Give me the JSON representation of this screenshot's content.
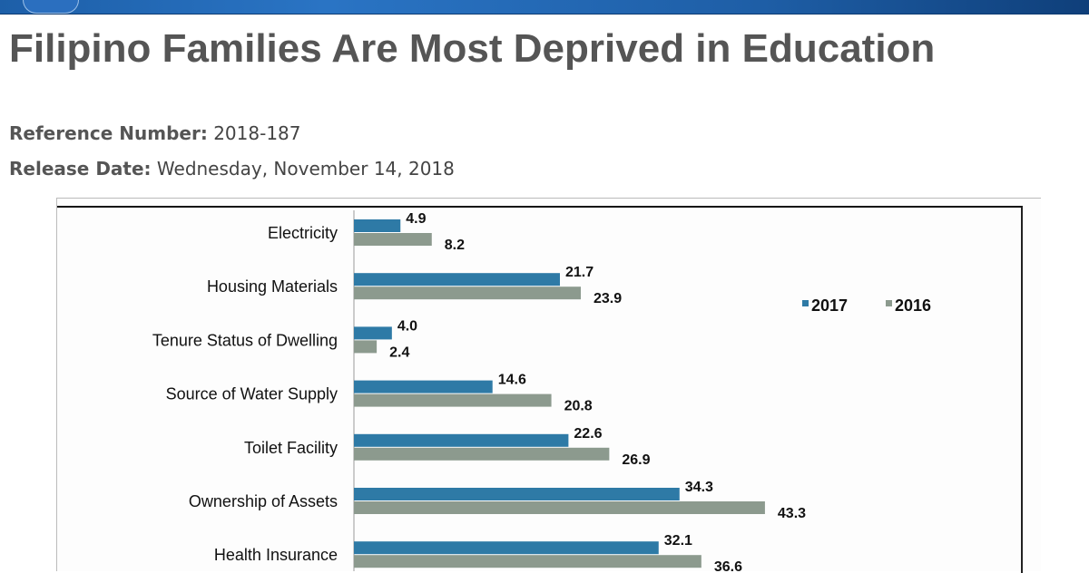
{
  "header": {
    "title": "Filipino Families Are Most Deprived in Education"
  },
  "meta": {
    "ref_label": "Reference Number:",
    "ref_value": "2018-187",
    "date_label": "Release Date:",
    "date_value": "Wednesday, November 14, 2018"
  },
  "chart_data": {
    "type": "bar",
    "orientation": "horizontal",
    "categories": [
      "Electricity",
      "Housing Materials",
      "Tenure Status of Dwelling",
      "Source of Water Supply",
      "Toilet Facility",
      "Ownership of Assets",
      "Health Insurance"
    ],
    "series": [
      {
        "name": "2017",
        "color": "#2e7aa6",
        "values": [
          4.9,
          21.7,
          4.0,
          14.6,
          22.6,
          34.3,
          32.1
        ]
      },
      {
        "name": "2016",
        "color": "#8c9a8e",
        "values": [
          8.2,
          23.9,
          2.4,
          20.8,
          26.9,
          43.3,
          36.6
        ]
      }
    ],
    "legend": "right",
    "grid": false
  }
}
